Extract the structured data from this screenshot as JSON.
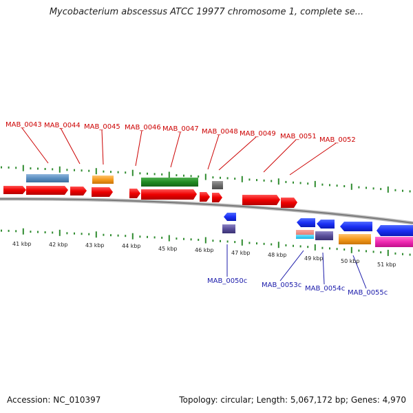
{
  "title": "Mycobacterium abscessus ATCC 19977 chromosome 1, complete se...",
  "footer": {
    "accession": "Accession: NC_010397",
    "summary": "Topology: circular; Length: 5,067,172 bp; Genes: 4,970"
  },
  "colors": {
    "forward_label": "#cc0000",
    "reverse_label": "#1a1aaa",
    "tick": "#2e8b2e",
    "backbone": "#888888"
  },
  "kbp_labels": [
    "41 kbp",
    "42 kbp",
    "43 kbp",
    "44 kbp",
    "45 kbp",
    "46 kbp",
    "47 kbp",
    "48 kbp",
    "49 kbp",
    "50 kbp",
    "51 kbp"
  ],
  "forward_genes": [
    "MAB_0043",
    "MAB_0044",
    "MAB_0045",
    "MAB_0046",
    "MAB_0047",
    "MAB_0048",
    "MAB_0049",
    "MAB_0051",
    "MAB_0052"
  ],
  "reverse_genes": [
    "MAB_0050c",
    "MAB_0053c",
    "MAB_0054c",
    "MAB_0055c"
  ]
}
